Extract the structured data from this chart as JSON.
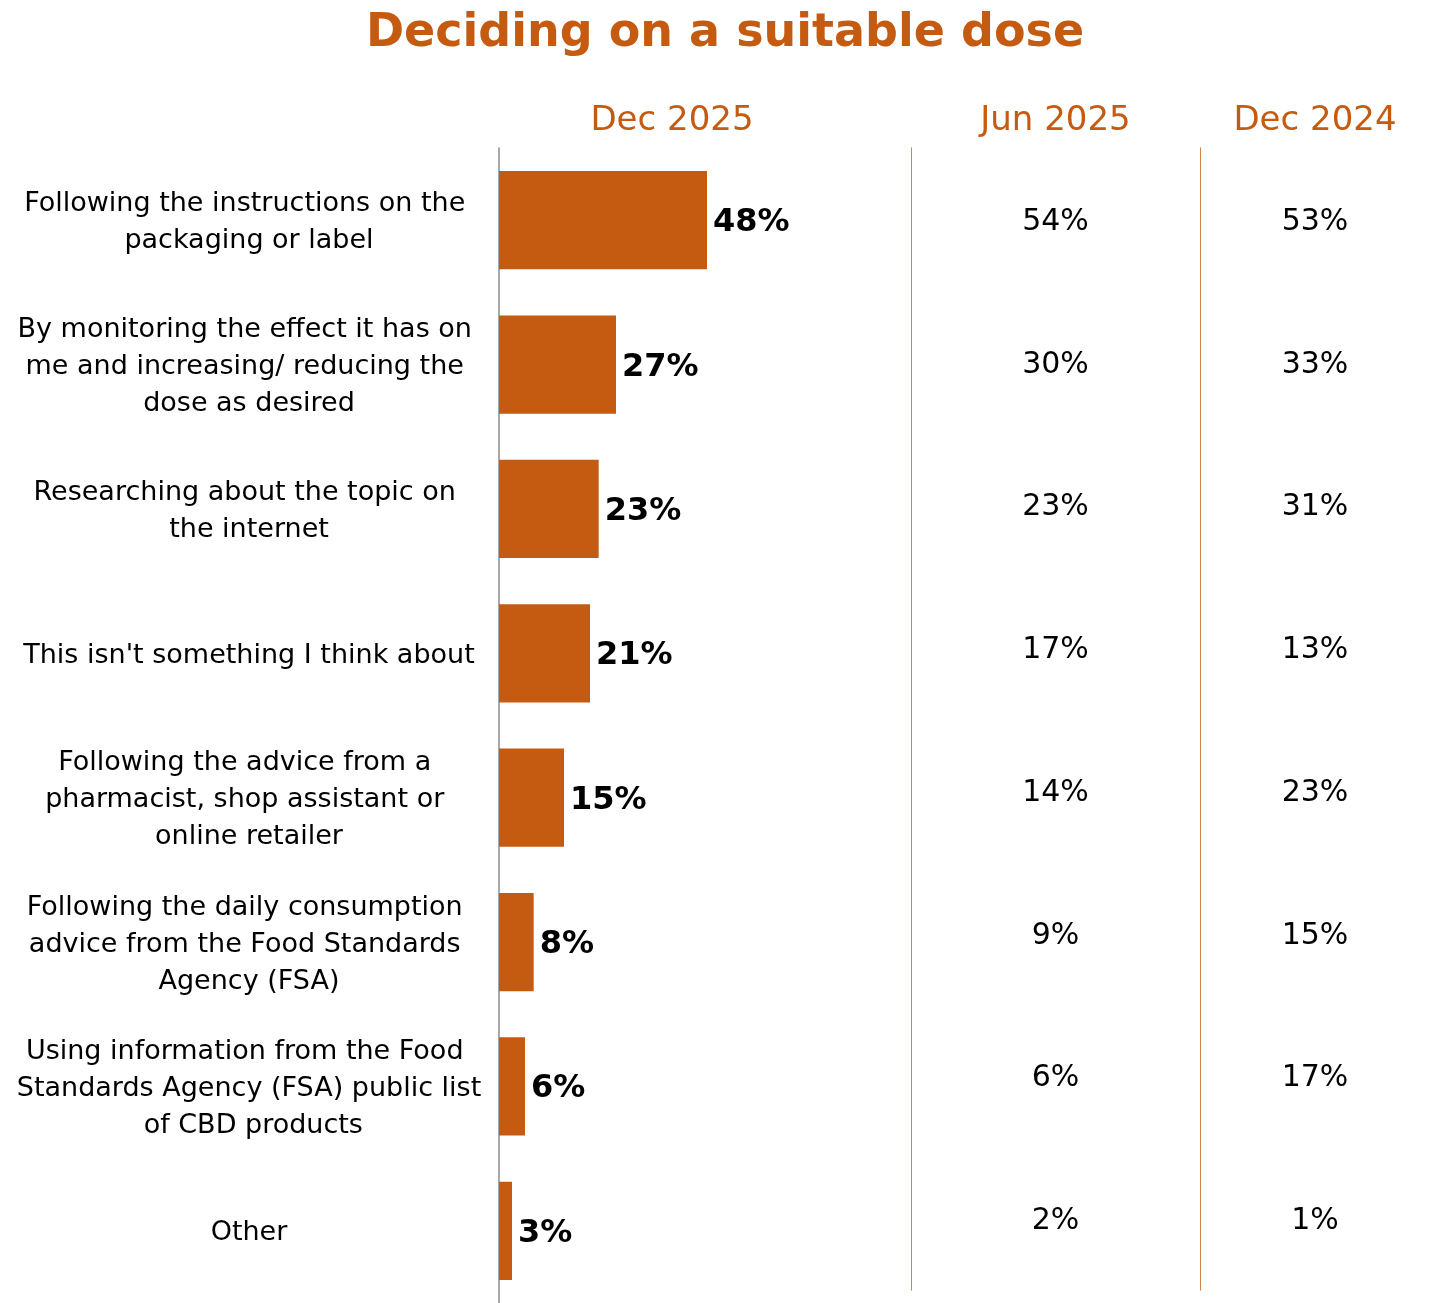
{
  "chart_data": [
    {
      "type": "bar",
      "orientation": "horizontal",
      "data_labels": true,
      "title": "Deciding on a suitable dose",
      "categories": [
        "Following the instructions on the packaging or label",
        "By monitoring the effect it has on me and increasing/ reducing the dose as desired",
        "Researching about the topic on the internet",
        "This isn't something I think about",
        "Following the advice from a pharmacist, shop assistant or online retailer",
        "Following the daily consumption advice from the Food Standards Agency (FSA)",
        "Using information from the Food Standards Agency (FSA) public list of CBD products",
        "Other"
      ],
      "series": [
        {
          "name": "Dec 2025",
          "color": "#c55a11",
          "values": [
            48,
            27,
            23,
            21,
            15,
            8,
            6,
            3
          ],
          "value_labels": [
            "48%",
            "27%",
            "23%",
            "21%",
            "15%",
            "8%",
            "6%",
            "3%"
          ]
        }
      ]
    },
    {
      "type": "other",
      "title": "Jun 2025",
      "data_labels": true,
      "categories": [
        null,
        null,
        null,
        null,
        null,
        null,
        null,
        null
      ],
      "series": [
        {
          "color": "#c55a11",
          "values": [
            54,
            30,
            23,
            17,
            14,
            9,
            6,
            2
          ],
          "value_labels": [
            "54%",
            "30%",
            "23%",
            "17%",
            "14%",
            "9%",
            "6%",
            "2%"
          ]
        }
      ]
    },
    {
      "type": "other",
      "title": "Dec 2024",
      "data_labels": true,
      "categories": [
        null,
        null,
        null,
        null,
        null,
        null,
        null,
        null
      ],
      "series": [
        {
          "color": "#c55a11",
          "values": [
            53,
            33,
            31,
            13,
            23,
            15,
            17,
            1
          ],
          "value_labels": [
            "53%",
            "33%",
            "31%",
            "13%",
            "23%",
            "15%",
            "17%",
            "1%"
          ]
        }
      ]
    }
  ]
}
